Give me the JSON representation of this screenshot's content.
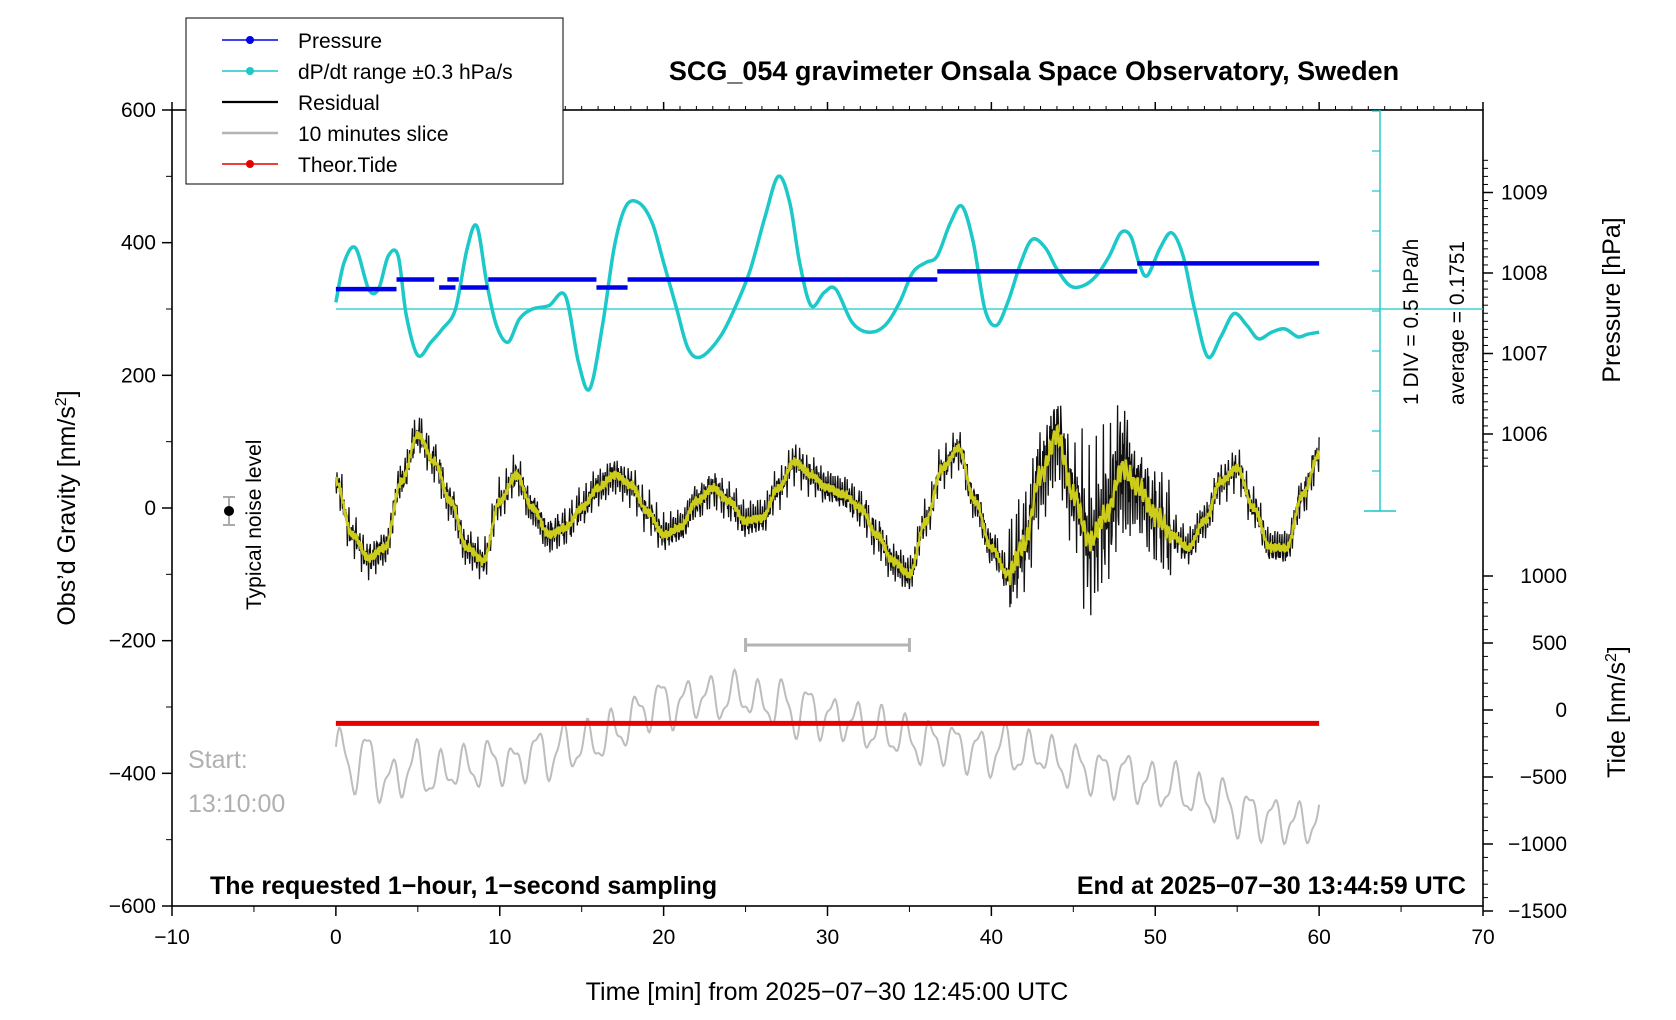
{
  "chart_data": {
    "type": "line",
    "title": "SCG_054 gravimeter Onsala Space Observatory, Sweden",
    "xlabel": "Time [min] from 2025−07−30 12:45:00 UTC",
    "ylabel_left": "Obs’d Gravity [nm/s",
    "ylabel_left_sup": "2",
    "ylabel_left_end": "]",
    "ylabel_right_pressure": "Pressure [hPa]",
    "ylabel_right_tide": "Tide [nm/s",
    "ylabel_right_tide_sup": "2",
    "ylabel_right_tide_end": "]",
    "xlim": [
      -10,
      70
    ],
    "ylim_left": [
      -600,
      600
    ],
    "x_ticks": [
      "−10",
      "0",
      "10",
      "20",
      "30",
      "40",
      "50",
      "60",
      "70"
    ],
    "y_ticks_left": [
      "600",
      "400",
      "200",
      "0",
      "−200",
      "−400",
      "−600"
    ],
    "pressure_ticks": [
      "1009",
      "1008",
      "1007",
      "1006"
    ],
    "tide_ticks": [
      "1000",
      "500",
      "0",
      "−500",
      "−1000",
      "−1500"
    ],
    "legend": [
      {
        "label": "Pressure",
        "color": "#0000e6",
        "marker": true
      },
      {
        "label": "dP/dt range ±0.3 hPa/s",
        "color": "#1cc8c8",
        "marker": true
      },
      {
        "label": "Residual",
        "color": "#000000",
        "marker": false
      },
      {
        "label": "10 minutes slice",
        "color": "#b4b4b4",
        "marker": false
      },
      {
        "label": "Theor.Tide",
        "color": "#e60000",
        "marker": true
      }
    ],
    "annotations": {
      "noise_level": "Typical noise level",
      "div_label": "1 DIV = 0.5 hPa/h",
      "average_label": "average = 0.1751",
      "start_label": "Start:",
      "start_time": "13:10:00",
      "bottom_left": "The requested 1−hour, 1−second sampling",
      "bottom_right": "End at 2025−07−30 13:44:59 UTC"
    },
    "slice_minutes": [
      25,
      35
    ],
    "pressure_steps": [
      {
        "x0": 0,
        "x1": 3.7,
        "hpa": 1007.8
      },
      {
        "x0": 3.7,
        "x1": 6.0,
        "hpa": 1007.92
      },
      {
        "x0": 6.3,
        "x1": 7.3,
        "hpa": 1007.82
      },
      {
        "x0": 6.8,
        "x1": 7.5,
        "hpa": 1007.92
      },
      {
        "x0": 7.6,
        "x1": 9.3,
        "hpa": 1007.82
      },
      {
        "x0": 9.3,
        "x1": 15.9,
        "hpa": 1007.92
      },
      {
        "x0": 15.9,
        "x1": 17.8,
        "hpa": 1007.82
      },
      {
        "x0": 17.8,
        "x1": 36.7,
        "hpa": 1007.92
      },
      {
        "x0": 36.7,
        "x1": 48.9,
        "hpa": 1008.02
      },
      {
        "x0": 48.9,
        "x1": 60,
        "hpa": 1008.12
      }
    ],
    "dpdt_baseline": 300,
    "dpdt_curve": {
      "x": [
        0,
        0.5,
        1.2,
        2,
        2.6,
        3.2,
        3.8,
        4.3,
        5,
        5.8,
        6.5,
        7.3,
        8,
        8.6,
        9.2,
        9.8,
        10.5,
        11.2,
        12,
        13,
        14,
        14.8,
        15.5,
        16.3,
        17,
        17.7,
        18.5,
        19.3,
        20,
        20.8,
        21.5,
        22.3,
        23.5,
        24.5,
        25.3,
        26.2,
        27,
        27.7,
        28.3,
        29,
        29.8,
        30.5,
        31.5,
        32.5,
        33.5,
        34.4,
        35.2,
        36,
        36.7,
        37.5,
        38.2,
        38.9,
        39.6,
        40.3,
        41,
        41.8,
        42.5,
        43.3,
        44,
        44.8,
        45.6,
        46.4,
        47.2,
        47.9,
        48.5,
        49,
        49.5,
        50.3,
        51,
        51.7,
        52.4,
        53.2,
        54,
        54.8,
        55.6,
        56.3,
        57.1,
        57.9,
        58.7,
        59.3,
        60
      ],
      "y": [
        310,
        370,
        392,
        330,
        330,
        380,
        380,
        290,
        230,
        250,
        270,
        300,
        390,
        425,
        340,
        275,
        250,
        285,
        300,
        305,
        320,
        220,
        180,
        280,
        395,
        455,
        460,
        430,
        370,
        300,
        240,
        228,
        260,
        310,
        360,
        440,
        500,
        460,
        370,
        305,
        325,
        330,
        280,
        265,
        275,
        310,
        355,
        370,
        380,
        430,
        455,
        400,
        300,
        275,
        310,
        370,
        405,
        392,
        360,
        335,
        335,
        350,
        380,
        415,
        410,
        370,
        350,
        392,
        415,
        380,
        300,
        228,
        258,
        293,
        275,
        255,
        265,
        270,
        258,
        262,
        265
      ]
    },
    "residual_curve": {
      "x": [
        0,
        1,
        2,
        3,
        4,
        5,
        6,
        7,
        8,
        9,
        10,
        11,
        12,
        13,
        14,
        15,
        16,
        17,
        18,
        19,
        20,
        21,
        22,
        23,
        24,
        25,
        26,
        27,
        28,
        29,
        30,
        31,
        32,
        33,
        34,
        35,
        36,
        37,
        38,
        39,
        40,
        41,
        42,
        43,
        44,
        45,
        46,
        47,
        48,
        49,
        50,
        51,
        52,
        53,
        54,
        55,
        56,
        57,
        58,
        59,
        60
      ],
      "y": [
        40,
        -40,
        -75,
        -60,
        40,
        110,
        70,
        10,
        -60,
        -80,
        10,
        50,
        0,
        -40,
        -30,
        0,
        30,
        50,
        35,
        -5,
        -40,
        -30,
        10,
        30,
        10,
        -20,
        -15,
        30,
        70,
        50,
        30,
        20,
        0,
        -40,
        -80,
        -100,
        -20,
        60,
        90,
        10,
        -60,
        -100,
        -55,
        50,
        110,
        20,
        -50,
        -10,
        60,
        30,
        -10,
        -40,
        -60,
        -20,
        40,
        60,
        0,
        -60,
        -60,
        20,
        80
      ]
    },
    "tide_curve": {
      "x": [
        0,
        60
      ],
      "y": [
        -100,
        -100
      ]
    },
    "slice_curve": {
      "x": [
        0,
        1,
        2,
        3,
        4,
        5,
        6,
        7,
        8,
        9,
        10,
        11,
        12,
        13,
        14,
        15,
        16,
        17,
        18,
        19,
        20,
        21,
        22,
        23,
        24,
        25,
        26,
        27,
        28,
        29,
        30,
        31,
        32,
        33,
        34,
        35,
        36,
        37,
        38,
        39,
        40,
        41,
        42,
        43,
        44,
        45,
        46,
        47,
        48,
        49,
        50,
        51,
        52,
        53,
        54,
        55,
        56,
        57,
        58,
        59,
        60
      ],
      "y": [
        -360,
        -395,
        -370,
        -420,
        -400,
        -385,
        -410,
        -390,
        -395,
        -385,
        -380,
        -390,
        -365,
        -375,
        -360,
        -360,
        -350,
        -340,
        -320,
        -300,
        -290,
        -300,
        -280,
        -290,
        -285,
        -280,
        -300,
        -290,
        -310,
        -300,
        -320,
        -315,
        -330,
        -335,
        -340,
        -350,
        -355,
        -350,
        -360,
        -365,
        -370,
        -360,
        -375,
        -365,
        -385,
        -390,
        -395,
        -400,
        -400,
        -410,
        -420,
        -420,
        -430,
        -440,
        -440,
        -460,
        -460,
        -470,
        -470,
        -480,
        -460
      ]
    }
  }
}
